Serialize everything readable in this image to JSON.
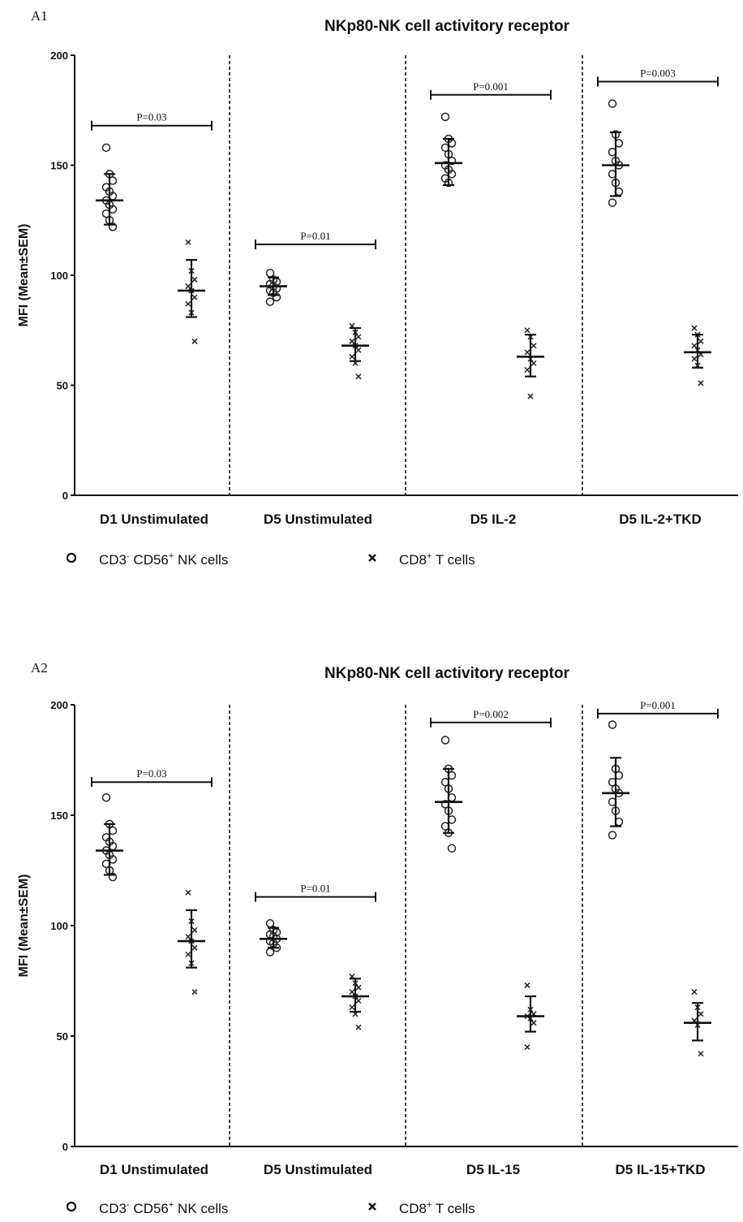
{
  "chart_data": [
    {
      "type": "scatter",
      "panel_label": "A1",
      "title": "NKp80-NK cell activitory receptor",
      "ylabel": "MFI (Mean±SEM)",
      "ylim": [
        0,
        200
      ],
      "yticks": [
        "0",
        "50",
        "100",
        "150",
        "200"
      ],
      "categories": [
        "D1 Unstimulated",
        "D5 Unstimulated",
        "D5 IL-2",
        "D5 IL-2+TKD"
      ],
      "series": [
        {
          "name": "CD3⁻ CD56⁺ NK cells",
          "marker": "circle",
          "mean": [
            134,
            95,
            151,
            150
          ],
          "sem_upper": [
            146,
            99,
            162,
            165
          ],
          "sem_lower": [
            123,
            91,
            141,
            136
          ],
          "points": [
            [
              158,
              146,
              143,
              140,
              138,
              136,
              134,
              132,
              130,
              128,
              125,
              122
            ],
            [
              101,
              98,
              97,
              96,
              95,
              94,
              93,
              92,
              90,
              88
            ],
            [
              172,
              162,
              160,
              158,
              155,
              152,
              150,
              148,
              146,
              144,
              142
            ],
            [
              178,
              164,
              160,
              156,
              152,
              150,
              146,
              142,
              138,
              133
            ]
          ]
        },
        {
          "name": "CD8⁺ T cells",
          "marker": "x",
          "mean": [
            93,
            68,
            63,
            65
          ],
          "sem_upper": [
            107,
            76,
            73,
            73
          ],
          "sem_lower": [
            81,
            61,
            54,
            58
          ],
          "points": [
            [
              115,
              102,
              98,
              95,
              93,
              90,
              87,
              83,
              70
            ],
            [
              77,
              74,
              72,
              70,
              68,
              66,
              63,
              60,
              54
            ],
            [
              75,
              72,
              68,
              65,
              62,
              60,
              57,
              45
            ],
            [
              76,
              73,
              70,
              68,
              66,
              64,
              62,
              59,
              51
            ]
          ]
        }
      ],
      "comparisons": [
        {
          "label": "P=0.03",
          "y": 168
        },
        {
          "label": "P=0.01",
          "y": 114
        },
        {
          "label": "P=0.001",
          "y": 182
        },
        {
          "label": "P=0.003",
          "y": 188
        }
      ],
      "legend": {
        "nk": {
          "pre": "CD3",
          "s1": "-",
          "mid": " CD56",
          "s2": "+",
          "post": " NK cells"
        },
        "t": {
          "pre": "CD8",
          "s1": "+",
          "post": " T cells"
        }
      }
    },
    {
      "type": "scatter",
      "panel_label": "A2",
      "title": "NKp80-NK cell activitory receptor",
      "ylabel": "MFI (Mean±SEM)",
      "ylim": [
        0,
        200
      ],
      "yticks": [
        "0",
        "50",
        "100",
        "150",
        "200"
      ],
      "categories": [
        "D1 Unstimulated",
        "D5 Unstimulated",
        "D5 IL-15",
        "D5 IL-15+TKD"
      ],
      "series": [
        {
          "name": "CD3⁻ CD56⁺ NK cells",
          "marker": "circle",
          "mean": [
            134,
            94,
            156,
            160
          ],
          "sem_upper": [
            146,
            99,
            171,
            176
          ],
          "sem_lower": [
            123,
            90,
            142,
            145
          ],
          "points": [
            [
              158,
              146,
              143,
              140,
              138,
              136,
              134,
              132,
              130,
              128,
              125,
              122
            ],
            [
              101,
              98,
              97,
              96,
              95,
              94,
              93,
              92,
              90,
              88
            ],
            [
              184,
              171,
              168,
              165,
              162,
              158,
              155,
              152,
              148,
              145,
              142,
              135
            ],
            [
              191,
              171,
              168,
              165,
              162,
              160,
              156,
              152,
              147,
              141
            ]
          ]
        },
        {
          "name": "CD8⁺ T cells",
          "marker": "x",
          "mean": [
            93,
            68,
            59,
            56
          ],
          "sem_upper": [
            107,
            76,
            68,
            65
          ],
          "sem_lower": [
            81,
            61,
            52,
            48
          ],
          "points": [
            [
              115,
              102,
              98,
              95,
              93,
              90,
              87,
              83,
              70
            ],
            [
              77,
              74,
              72,
              70,
              68,
              66,
              63,
              60,
              54
            ],
            [
              73,
              62,
              60,
              59,
              58,
              56,
              45
            ],
            [
              70,
              63,
              60,
              57,
              55,
              42
            ]
          ]
        }
      ],
      "comparisons": [
        {
          "label": "P=0.03",
          "y": 165
        },
        {
          "label": "P=0.01",
          "y": 113
        },
        {
          "label": "P=0.002",
          "y": 192
        },
        {
          "label": "P=0.001",
          "y": 196
        }
      ],
      "legend": {
        "nk": {
          "pre": "CD3",
          "s1": "-",
          "mid": " CD56",
          "s2": "+",
          "post": " NK cells"
        },
        "t": {
          "pre": "CD8",
          "s1": "+",
          "post": " T cells"
        }
      }
    }
  ]
}
